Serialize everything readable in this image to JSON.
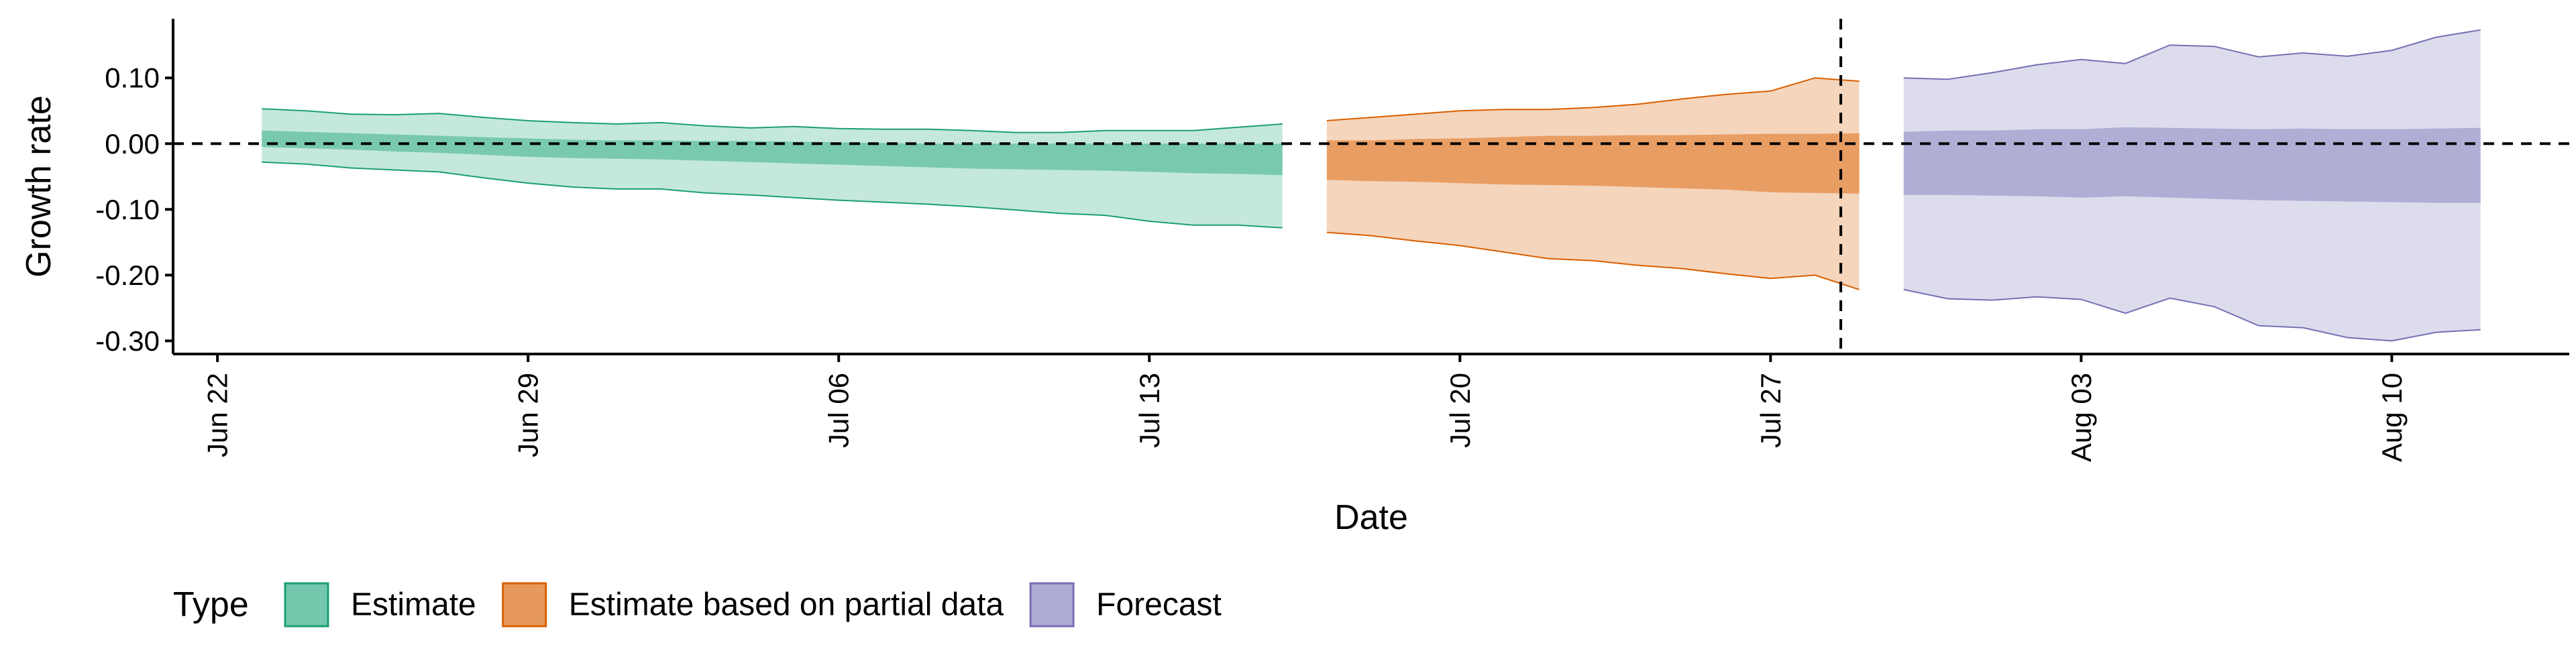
{
  "chart_data": {
    "type": "area",
    "xlabel": "Date",
    "ylabel": "Growth rate",
    "ylim": [
      -0.32,
      0.19
    ],
    "y_ticks": [
      0.1,
      0.0,
      -0.1,
      -0.2,
      -0.3
    ],
    "y_tick_labels": [
      "0.10",
      "0.00",
      "-0.10",
      "-0.20",
      "-0.30"
    ],
    "x_range": [
      "2020-06-21T00:00",
      "2020-08-14T00:00"
    ],
    "x_ticks": [
      "2020-06-22",
      "2020-06-29",
      "2020-07-06",
      "2020-07-13",
      "2020-07-20",
      "2020-07-27",
      "2020-08-03",
      "2020-08-10"
    ],
    "x_tick_labels": [
      "Jun 22",
      "Jun 29",
      "Jul 06",
      "Jul 13",
      "Jul 20",
      "Jul 27",
      "Aug 03",
      "Aug 10"
    ],
    "reference_lines": {
      "horizontal_y": 0.0,
      "vertical_date": "2020-07-28T14:00"
    },
    "grid": false,
    "legend": {
      "title": "Type",
      "position": "bottom-left"
    },
    "series": [
      {
        "name": "Estimate",
        "fill": "#66c2a5",
        "outline": "#1b9e77",
        "dates": [
          "2020-06-23",
          "2020-06-24",
          "2020-06-25",
          "2020-06-26",
          "2020-06-27",
          "2020-06-28",
          "2020-06-29",
          "2020-06-30",
          "2020-07-01",
          "2020-07-02",
          "2020-07-03",
          "2020-07-04",
          "2020-07-05",
          "2020-07-06",
          "2020-07-07",
          "2020-07-08",
          "2020-07-09",
          "2020-07-10",
          "2020-07-11",
          "2020-07-12",
          "2020-07-13",
          "2020-07-14",
          "2020-07-15",
          "2020-07-16"
        ],
        "outer_upper": [
          0.053,
          0.05,
          0.045,
          0.044,
          0.046,
          0.04,
          0.035,
          0.032,
          0.03,
          0.032,
          0.027,
          0.024,
          0.026,
          0.023,
          0.022,
          0.022,
          0.02,
          0.017,
          0.017,
          0.02,
          0.02,
          0.02,
          0.025,
          0.03
        ],
        "outer_lower": [
          -0.028,
          -0.031,
          -0.037,
          -0.04,
          -0.043,
          -0.052,
          -0.06,
          -0.066,
          -0.069,
          -0.069,
          -0.075,
          -0.078,
          -0.082,
          -0.086,
          -0.089,
          -0.092,
          -0.096,
          -0.101,
          -0.106,
          -0.109,
          -0.118,
          -0.124,
          -0.124,
          -0.128
        ],
        "inner_upper": [
          0.02,
          0.018,
          0.016,
          0.014,
          0.012,
          0.01,
          0.008,
          0.006,
          0.005,
          0.005,
          0.004,
          0.004,
          0.003,
          0.002,
          0.001,
          0.0,
          0.0,
          0.0,
          0.0,
          0.0,
          0.0,
          0.0,
          0.0,
          0.0
        ],
        "inner_lower": [
          -0.005,
          -0.007,
          -0.009,
          -0.012,
          -0.014,
          -0.017,
          -0.02,
          -0.022,
          -0.023,
          -0.024,
          -0.026,
          -0.028,
          -0.03,
          -0.032,
          -0.034,
          -0.036,
          -0.038,
          -0.039,
          -0.04,
          -0.041,
          -0.043,
          -0.045,
          -0.046,
          -0.048
        ]
      },
      {
        "name": "Estimate based on partial data",
        "fill": "#e5904f",
        "outline": "#d95f02",
        "dates": [
          "2020-07-17",
          "2020-07-18",
          "2020-07-19",
          "2020-07-20",
          "2020-07-21",
          "2020-07-22",
          "2020-07-23",
          "2020-07-24",
          "2020-07-25",
          "2020-07-26",
          "2020-07-27",
          "2020-07-28",
          "2020-07-29"
        ],
        "outer_upper": [
          0.035,
          0.04,
          0.045,
          0.05,
          0.052,
          0.052,
          0.055,
          0.06,
          0.068,
          0.075,
          0.08,
          0.1,
          0.095
        ],
        "outer_lower": [
          -0.135,
          -0.14,
          -0.148,
          -0.155,
          -0.165,
          -0.175,
          -0.178,
          -0.185,
          -0.19,
          -0.198,
          -0.205,
          -0.2,
          -0.222
        ],
        "inner_upper": [
          0.005,
          0.005,
          0.007,
          0.008,
          0.01,
          0.012,
          0.012,
          0.013,
          0.013,
          0.014,
          0.015,
          0.015,
          0.016
        ],
        "inner_lower": [
          -0.055,
          -0.057,
          -0.058,
          -0.06,
          -0.062,
          -0.063,
          -0.064,
          -0.066,
          -0.068,
          -0.07,
          -0.074,
          -0.075,
          -0.076
        ]
      },
      {
        "name": "Forecast",
        "fill": "#a6a3d0",
        "outline": "#7570b3",
        "dates": [
          "2020-07-30",
          "2020-07-31",
          "2020-08-01",
          "2020-08-02",
          "2020-08-03",
          "2020-08-04",
          "2020-08-05",
          "2020-08-06",
          "2020-08-07",
          "2020-08-08",
          "2020-08-09",
          "2020-08-10",
          "2020-08-11",
          "2020-08-12"
        ],
        "outer_upper": [
          0.1,
          0.098,
          0.108,
          0.12,
          0.128,
          0.122,
          0.15,
          0.148,
          0.132,
          0.138,
          0.133,
          0.142,
          0.162,
          0.173
        ],
        "outer_lower": [
          -0.222,
          -0.236,
          -0.238,
          -0.233,
          -0.237,
          -0.258,
          -0.235,
          -0.248,
          -0.277,
          -0.28,
          -0.295,
          -0.3,
          -0.287,
          -0.283
        ],
        "inner_upper": [
          0.018,
          0.02,
          0.02,
          0.022,
          0.022,
          0.025,
          0.024,
          0.023,
          0.022,
          0.023,
          0.022,
          0.022,
          0.023,
          0.024
        ],
        "inner_lower": [
          -0.078,
          -0.078,
          -0.079,
          -0.08,
          -0.082,
          -0.08,
          -0.082,
          -0.084,
          -0.086,
          -0.087,
          -0.088,
          -0.089,
          -0.09,
          -0.09
        ]
      }
    ]
  }
}
